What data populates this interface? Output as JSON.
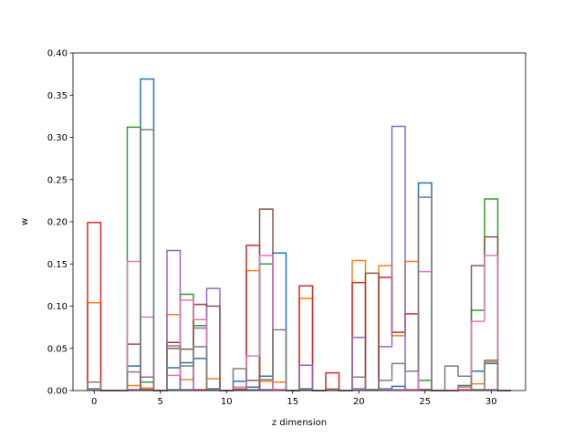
{
  "chart_data": {
    "type": "step-histogram",
    "xlabel": "z dimension",
    "ylabel": "w",
    "xlim": [
      -1.6,
      32.6
    ],
    "ylim": [
      0,
      0.4
    ],
    "xticks": [
      0,
      5,
      10,
      15,
      20,
      25,
      30
    ],
    "yticks": [
      0.0,
      0.05,
      0.1,
      0.15,
      0.2,
      0.25,
      0.3,
      0.35,
      0.4
    ],
    "xtick_labels": [
      "0",
      "5",
      "10",
      "15",
      "20",
      "25",
      "30"
    ],
    "ytick_labels": [
      "0.00",
      "0.05",
      "0.10",
      "0.15",
      "0.20",
      "0.25",
      "0.30",
      "0.35",
      "0.40"
    ],
    "bin_edges": [
      -0.5,
      0.5,
      1.5,
      2.5,
      3.5,
      4.5,
      5.5,
      6.5,
      7.5,
      8.5,
      9.5,
      10.5,
      11.5,
      12.5,
      13.5,
      14.5,
      15.5,
      16.5,
      17.5,
      18.5,
      19.5,
      20.5,
      21.5,
      22.5,
      23.5,
      24.5,
      25.5,
      26.5,
      27.5,
      28.5,
      29.5,
      30.5,
      31.5
    ],
    "series": [
      {
        "color": "#1f77b4",
        "values": [
          0.002,
          0,
          0,
          0.029,
          0.369,
          0,
          0.027,
          0.033,
          0.038,
          0.002,
          0,
          0.011,
          0.004,
          0.017,
          0.163,
          0,
          0.002,
          0,
          0.001,
          0,
          0.002,
          0.001,
          0.002,
          0.005,
          0.001,
          0.246,
          0,
          0,
          0.006,
          0.023,
          0.032,
          0
        ]
      },
      {
        "color": "#ff7f0e",
        "values": [
          0.104,
          0,
          0,
          0.006,
          0.003,
          0,
          0.09,
          0.013,
          0.102,
          0.014,
          0,
          0.002,
          0.142,
          0.011,
          0.01,
          0,
          0.109,
          0,
          0.002,
          0,
          0.154,
          0.001,
          0.148,
          0.065,
          0.153,
          0.001,
          0,
          0,
          0.004,
          0.008,
          0.034,
          0
        ]
      },
      {
        "color": "#2ca02c",
        "values": [
          0.001,
          0,
          0,
          0.312,
          0.01,
          0,
          0.001,
          0.114,
          0.077,
          0.001,
          0,
          0.001,
          0.001,
          0.15,
          0.001,
          0,
          0.001,
          0,
          0.001,
          0,
          0.001,
          0.001,
          0.001,
          0.001,
          0.001,
          0.012,
          0,
          0,
          0.001,
          0.095,
          0.227,
          0
        ]
      },
      {
        "color": "#d62728",
        "values": [
          0.199,
          0,
          0,
          0.001,
          0.001,
          0,
          0.057,
          0.001,
          0.001,
          0.001,
          0,
          0.001,
          0.172,
          0.001,
          0.001,
          0,
          0.124,
          0,
          0.021,
          0,
          0.128,
          0.001,
          0.134,
          0.069,
          0.091,
          0.001,
          0,
          0,
          0.001,
          0.001,
          0.001,
          0
        ]
      },
      {
        "color": "#9467bd",
        "values": [
          0.001,
          0,
          0,
          0.001,
          0.016,
          0,
          0.166,
          0.001,
          0.074,
          0.121,
          0,
          0.001,
          0.001,
          0.001,
          0.001,
          0,
          0.03,
          0,
          0.001,
          0,
          0.063,
          0.001,
          0.052,
          0.313,
          0.001,
          0.001,
          0,
          0,
          0.001,
          0.001,
          0.001,
          0
        ]
      },
      {
        "color": "#8c564b",
        "values": [
          0.001,
          0,
          0,
          0.055,
          0.001,
          0,
          0.05,
          0.049,
          0.102,
          0.1,
          0,
          0.001,
          0.012,
          0.215,
          0.001,
          0,
          0.001,
          0,
          0.001,
          0,
          0.001,
          0.139,
          0.001,
          0.001,
          0.001,
          0.001,
          0,
          0,
          0.001,
          0.148,
          0.182,
          0
        ]
      },
      {
        "color": "#e377c2",
        "values": [
          0.001,
          0,
          0,
          0.153,
          0.087,
          0,
          0.018,
          0.107,
          0.084,
          0.001,
          0,
          0.004,
          0.041,
          0.16,
          0.001,
          0,
          0.001,
          0,
          0.001,
          0,
          0.001,
          0.001,
          0.001,
          0.001,
          0.001,
          0.141,
          0,
          0,
          0.001,
          0.082,
          0.16,
          0
        ]
      },
      {
        "color": "#7f7f7f",
        "values": [
          0.01,
          0,
          0,
          0.022,
          0.309,
          0,
          0.053,
          0.029,
          0.052,
          0.001,
          0,
          0.026,
          0.012,
          0.013,
          0.072,
          0,
          0.001,
          0,
          0.001,
          0,
          0.016,
          0.001,
          0.012,
          0.032,
          0.023,
          0.229,
          0,
          0.029,
          0.017,
          0.001,
          0.036,
          0
        ]
      }
    ]
  }
}
